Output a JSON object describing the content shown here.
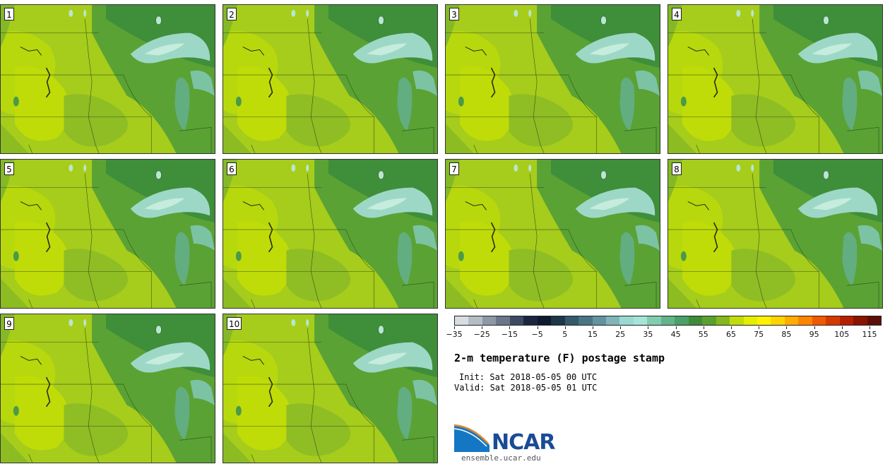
{
  "panels": [
    {
      "label": "1"
    },
    {
      "label": "2"
    },
    {
      "label": "3"
    },
    {
      "label": "4"
    },
    {
      "label": "5"
    },
    {
      "label": "6"
    },
    {
      "label": "7"
    },
    {
      "label": "8"
    },
    {
      "label": "9"
    },
    {
      "label": "10"
    }
  ],
  "colorbar": {
    "colors": [
      "#d8dde2",
      "#b4bcc4",
      "#8c98a6",
      "#6a778a",
      "#3c4a64",
      "#1a2640",
      "#0d1a30",
      "#1e3648",
      "#34586c",
      "#4a7484",
      "#6392a0",
      "#80b4b8",
      "#9ad8d2",
      "#a6e4d8",
      "#82ccb0",
      "#62b48a",
      "#4aa066",
      "#3c8c3a",
      "#5aa02e",
      "#84b81c",
      "#c0dc0a",
      "#e4ee00",
      "#fff200",
      "#ffd400",
      "#ffae00",
      "#ff8400",
      "#f05a00",
      "#d43a00",
      "#b42000",
      "#8a1400",
      "#5a1008"
    ],
    "tick_labels": [
      "−35",
      "−25",
      "−15",
      "−5",
      "5",
      "15",
      "25",
      "35",
      "45",
      "55",
      "65",
      "75",
      "85",
      "95",
      "105",
      "115"
    ]
  },
  "title": "2-m temperature (F) postage stamp",
  "init": "Init: Sat 2018-05-05 00 UTC",
  "valid": "Valid: Sat 2018-05-05 01 UTC",
  "logo": {
    "text": "NCAR",
    "site": "ensemble.ucar.edu"
  }
}
